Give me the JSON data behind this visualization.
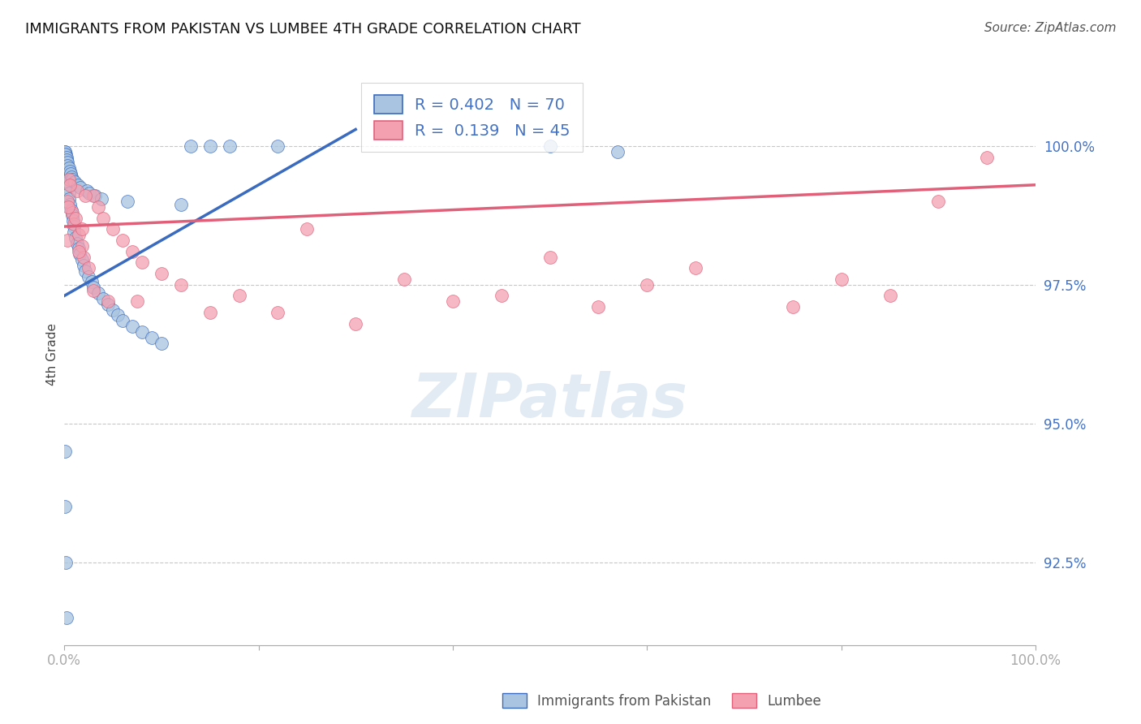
{
  "title": "IMMIGRANTS FROM PAKISTAN VS LUMBEE 4TH GRADE CORRELATION CHART",
  "source_text": "Source: ZipAtlas.com",
  "ylabel": "4th Grade",
  "xlim": [
    0.0,
    100.0
  ],
  "ylim": [
    91.0,
    101.5
  ],
  "yticks": [
    92.5,
    95.0,
    97.5,
    100.0
  ],
  "ytick_labels": [
    "92.5%",
    "95.0%",
    "97.5%",
    "100.0%"
  ],
  "blue_R": 0.402,
  "blue_N": 70,
  "pink_R": 0.139,
  "pink_N": 45,
  "blue_color": "#a8c4e0",
  "pink_color": "#f4a0b0",
  "blue_line_color": "#3a6bbf",
  "pink_line_color": "#e0607a",
  "legend_blue_label": "Immigrants from Pakistan",
  "legend_pink_label": "Lumbee",
  "blue_x": [
    0.1,
    0.1,
    0.1,
    0.1,
    0.1,
    0.15,
    0.2,
    0.2,
    0.3,
    0.3,
    0.4,
    0.4,
    0.5,
    0.5,
    0.6,
    0.7,
    0.8,
    0.9,
    1.0,
    1.0,
    1.2,
    1.3,
    1.5,
    1.6,
    1.8,
    2.0,
    2.2,
    2.5,
    2.8,
    3.0,
    3.5,
    4.0,
    4.5,
    5.0,
    5.5,
    6.0,
    7.0,
    8.0,
    9.0,
    10.0,
    0.1,
    0.1,
    0.2,
    0.2,
    0.3,
    0.35,
    0.45,
    0.55,
    0.65,
    0.75,
    0.85,
    1.1,
    1.4,
    1.7,
    2.3,
    2.6,
    3.2,
    3.8,
    6.5,
    12.0,
    0.1,
    0.1,
    0.15,
    0.25,
    50.0,
    57.0,
    22.0,
    17.0,
    13.0,
    15.0
  ],
  "blue_y": [
    99.9,
    99.8,
    99.7,
    99.6,
    99.5,
    99.85,
    99.75,
    99.65,
    99.55,
    99.45,
    99.35,
    99.25,
    99.15,
    99.05,
    98.95,
    98.85,
    98.75,
    98.65,
    98.55,
    98.45,
    98.35,
    98.25,
    98.15,
    98.05,
    97.95,
    97.85,
    97.75,
    97.65,
    97.55,
    97.45,
    97.35,
    97.25,
    97.15,
    97.05,
    96.95,
    96.85,
    96.75,
    96.65,
    96.55,
    96.45,
    99.9,
    99.85,
    99.8,
    99.75,
    99.7,
    99.65,
    99.6,
    99.55,
    99.5,
    99.45,
    99.4,
    99.35,
    99.3,
    99.25,
    99.2,
    99.15,
    99.1,
    99.05,
    99.0,
    98.95,
    94.5,
    93.5,
    92.5,
    91.5,
    100.0,
    99.9,
    100.0,
    100.0,
    100.0,
    100.0
  ],
  "pink_x": [
    0.3,
    0.5,
    0.8,
    1.0,
    1.3,
    1.5,
    1.8,
    2.0,
    2.5,
    3.0,
    3.5,
    4.0,
    5.0,
    6.0,
    7.0,
    8.0,
    10.0,
    12.0,
    18.0,
    25.0,
    35.0,
    50.0,
    65.0,
    80.0,
    90.0,
    0.3,
    0.6,
    1.2,
    1.8,
    2.2,
    4.5,
    22.0,
    0.4,
    1.5,
    3.0,
    7.5,
    15.0,
    30.0,
    45.0,
    60.0,
    75.0,
    85.0,
    95.0,
    55.0,
    40.0
  ],
  "pink_y": [
    99.0,
    99.4,
    98.8,
    98.6,
    99.2,
    98.4,
    98.2,
    98.0,
    97.8,
    99.1,
    98.9,
    98.7,
    98.5,
    98.3,
    98.1,
    97.9,
    97.7,
    97.5,
    97.3,
    98.5,
    97.6,
    98.0,
    97.8,
    97.6,
    99.0,
    98.3,
    99.3,
    98.7,
    98.5,
    99.1,
    97.2,
    97.0,
    98.9,
    98.1,
    97.4,
    97.2,
    97.0,
    96.8,
    97.3,
    97.5,
    97.1,
    97.3,
    99.8,
    97.1,
    97.2
  ],
  "blue_trend_x0": 0.0,
  "blue_trend_y0": 97.3,
  "blue_trend_x1": 30.0,
  "blue_trend_y1": 100.3,
  "pink_trend_x0": 0.0,
  "pink_trend_y0": 98.55,
  "pink_trend_x1": 100.0,
  "pink_trend_y1": 99.3
}
